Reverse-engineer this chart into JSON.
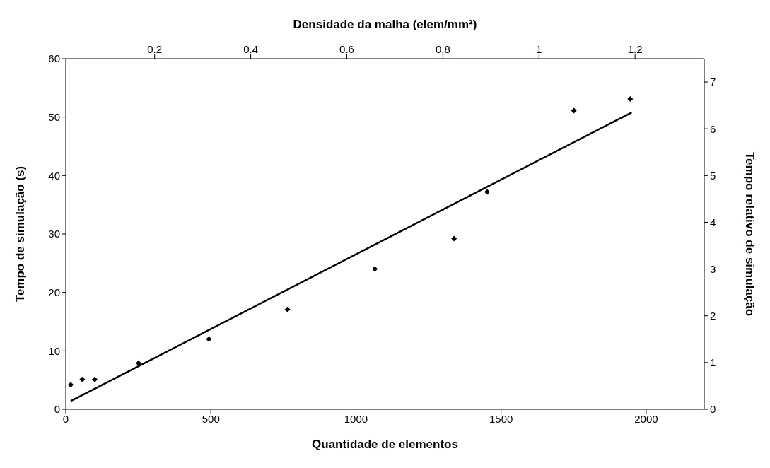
{
  "chart_data": {
    "type": "scatter",
    "xlabel": "Quantidade de elementos",
    "x2label": "Densidade da malha (elem/mm²)",
    "ylabel": "Tempo de simulação (s)",
    "y2label": "Tempo relativo de simulação",
    "xlim": [
      0,
      2200
    ],
    "xticks": [
      0,
      500,
      1000,
      1500,
      2000
    ],
    "x2lim": [
      0.015,
      1.344
    ],
    "x2ticks": [
      0.2,
      0.4,
      0.6,
      0.8,
      1,
      1.2
    ],
    "ylim": [
      0,
      60
    ],
    "yticks": [
      0,
      10,
      20,
      30,
      40,
      50,
      60
    ],
    "y2lim": [
      0,
      7.5
    ],
    "y2ticks": [
      0,
      1,
      2,
      3,
      4,
      5,
      6,
      7
    ],
    "marker": "diamond",
    "series": [
      {
        "color": "#000000",
        "x": [
          17,
          57,
          100,
          251,
          493,
          764,
          1065,
          1338,
          1452,
          1751,
          1945
        ],
        "values": [
          4.2,
          5.1,
          5.1,
          7.9,
          12.0,
          17.1,
          24.0,
          29.2,
          37.2,
          51.1,
          53.1
        ]
      },
      {
        "type": "line",
        "color": "#000000",
        "marker": "none",
        "x": [
          17,
          1950
        ],
        "values": [
          1.4,
          50.8
        ]
      }
    ]
  }
}
